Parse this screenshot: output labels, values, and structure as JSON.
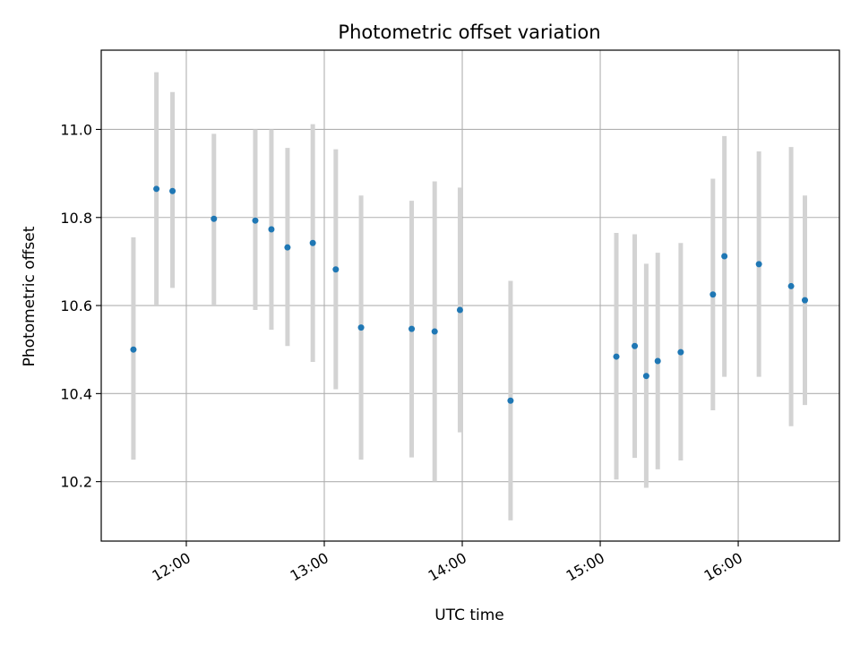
{
  "chart_data": {
    "type": "scatter",
    "title": "Photometric offset variation",
    "xlabel": "UTC time",
    "ylabel": "Photometric offset",
    "x_tick_labels": [
      "12:00",
      "13:00",
      "14:00",
      "15:00",
      "16:00"
    ],
    "x_tick_hours": [
      12,
      13,
      14,
      15,
      16
    ],
    "y_tick_labels": [
      "10.2",
      "10.4",
      "10.6",
      "10.8",
      "11.0"
    ],
    "y_tick_values": [
      10.2,
      10.4,
      10.6,
      10.8,
      11.0
    ],
    "xlim": [
      "11:23",
      "16:44"
    ],
    "ylim": [
      10.065,
      11.18
    ],
    "grid": true,
    "colors": {
      "marker": "#1f77b4",
      "errorbar": "#d3d3d3",
      "grid": "#b0b0b0"
    },
    "points": [
      {
        "time": "11:37",
        "y": 10.5,
        "yerr_low": 10.25,
        "yerr_high": 10.755
      },
      {
        "time": "11:47",
        "y": 10.865,
        "yerr_low": 10.6,
        "yerr_high": 11.13
      },
      {
        "time": "11:54",
        "y": 10.86,
        "yerr_low": 10.64,
        "yerr_high": 11.085
      },
      {
        "time": "12:12",
        "y": 10.797,
        "yerr_low": 10.6,
        "yerr_high": 10.99
      },
      {
        "time": "12:30",
        "y": 10.793,
        "yerr_low": 10.59,
        "yerr_high": 11.0
      },
      {
        "time": "12:37",
        "y": 10.773,
        "yerr_low": 10.545,
        "yerr_high": 11.0
      },
      {
        "time": "12:44",
        "y": 10.732,
        "yerr_low": 10.508,
        "yerr_high": 10.958
      },
      {
        "time": "12:55",
        "y": 10.742,
        "yerr_low": 10.472,
        "yerr_high": 11.012
      },
      {
        "time": "13:05",
        "y": 10.682,
        "yerr_low": 10.41,
        "yerr_high": 10.955
      },
      {
        "time": "13:16",
        "y": 10.55,
        "yerr_low": 10.25,
        "yerr_high": 10.85
      },
      {
        "time": "13:38",
        "y": 10.547,
        "yerr_low": 10.255,
        "yerr_high": 10.838
      },
      {
        "time": "13:48",
        "y": 10.541,
        "yerr_low": 10.2,
        "yerr_high": 10.882
      },
      {
        "time": "13:59",
        "y": 10.59,
        "yerr_low": 10.312,
        "yerr_high": 10.868
      },
      {
        "time": "14:21",
        "y": 10.384,
        "yerr_low": 10.112,
        "yerr_high": 10.656
      },
      {
        "time": "15:07",
        "y": 10.484,
        "yerr_low": 10.205,
        "yerr_high": 10.765
      },
      {
        "time": "15:15",
        "y": 10.508,
        "yerr_low": 10.254,
        "yerr_high": 10.762
      },
      {
        "time": "15:20",
        "y": 10.44,
        "yerr_low": 10.186,
        "yerr_high": 10.695
      },
      {
        "time": "15:25",
        "y": 10.474,
        "yerr_low": 10.228,
        "yerr_high": 10.72
      },
      {
        "time": "15:35",
        "y": 10.494,
        "yerr_low": 10.248,
        "yerr_high": 10.742
      },
      {
        "time": "15:49",
        "y": 10.625,
        "yerr_low": 10.362,
        "yerr_high": 10.888
      },
      {
        "time": "15:54",
        "y": 10.712,
        "yerr_low": 10.438,
        "yerr_high": 10.985
      },
      {
        "time": "16:09",
        "y": 10.694,
        "yerr_low": 10.438,
        "yerr_high": 10.95
      },
      {
        "time": "16:23",
        "y": 10.644,
        "yerr_low": 10.326,
        "yerr_high": 10.96
      },
      {
        "time": "16:29",
        "y": 10.612,
        "yerr_low": 10.374,
        "yerr_high": 10.85
      }
    ]
  }
}
